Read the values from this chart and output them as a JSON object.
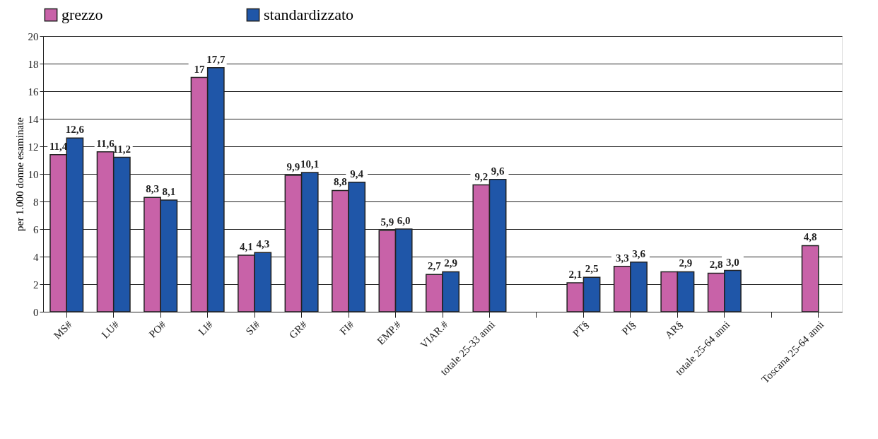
{
  "chart_data": {
    "type": "bar",
    "ylabel": "per 1.000 donne esaminate",
    "categories": [
      "MS#",
      "LU#",
      "PO#",
      "LI#",
      "SI#",
      "GR#",
      "FI#",
      "EMP.#",
      "VIAR.#",
      "totale 25-33 anni",
      null,
      "PT§",
      "PI§",
      "AR§",
      "totale 25-64 anni",
      null,
      "Toscana 25-64 anni"
    ],
    "series": [
      {
        "name": "grezzo",
        "color": "#c862a8",
        "values": [
          11.4,
          11.6,
          8.3,
          17,
          4.1,
          9.9,
          8.8,
          5.9,
          2.7,
          9.2,
          null,
          2.1,
          3.3,
          2.9,
          2.8,
          null,
          4.8
        ],
        "value_labels": [
          "11,4",
          "11,6",
          "8,3",
          "17",
          "4,1",
          "9,9",
          "8,8",
          "5,9",
          "2,7",
          "9,2",
          null,
          "2,1",
          "3,3",
          null,
          "2,8",
          null,
          "4,8"
        ]
      },
      {
        "name": "standardizzato",
        "color": "#1f56a8",
        "values": [
          12.6,
          11.2,
          8.1,
          17.7,
          4.3,
          10.1,
          9.4,
          6.0,
          2.9,
          9.6,
          null,
          2.5,
          3.6,
          2.9,
          3.0,
          null,
          null
        ],
        "value_labels": [
          "12,6",
          "11,2",
          "8,1",
          "17,7",
          "4,3",
          "10,1",
          "9,4",
          "6,0",
          "2,9",
          "9,6",
          null,
          "2,5",
          "3,6",
          "2,9",
          "3,0",
          null,
          null
        ]
      }
    ],
    "ylim": [
      0,
      20
    ],
    "yticks": [
      0,
      2,
      4,
      6,
      8,
      10,
      12,
      14,
      16,
      18,
      20
    ],
    "grid": "y",
    "legend": "top"
  }
}
